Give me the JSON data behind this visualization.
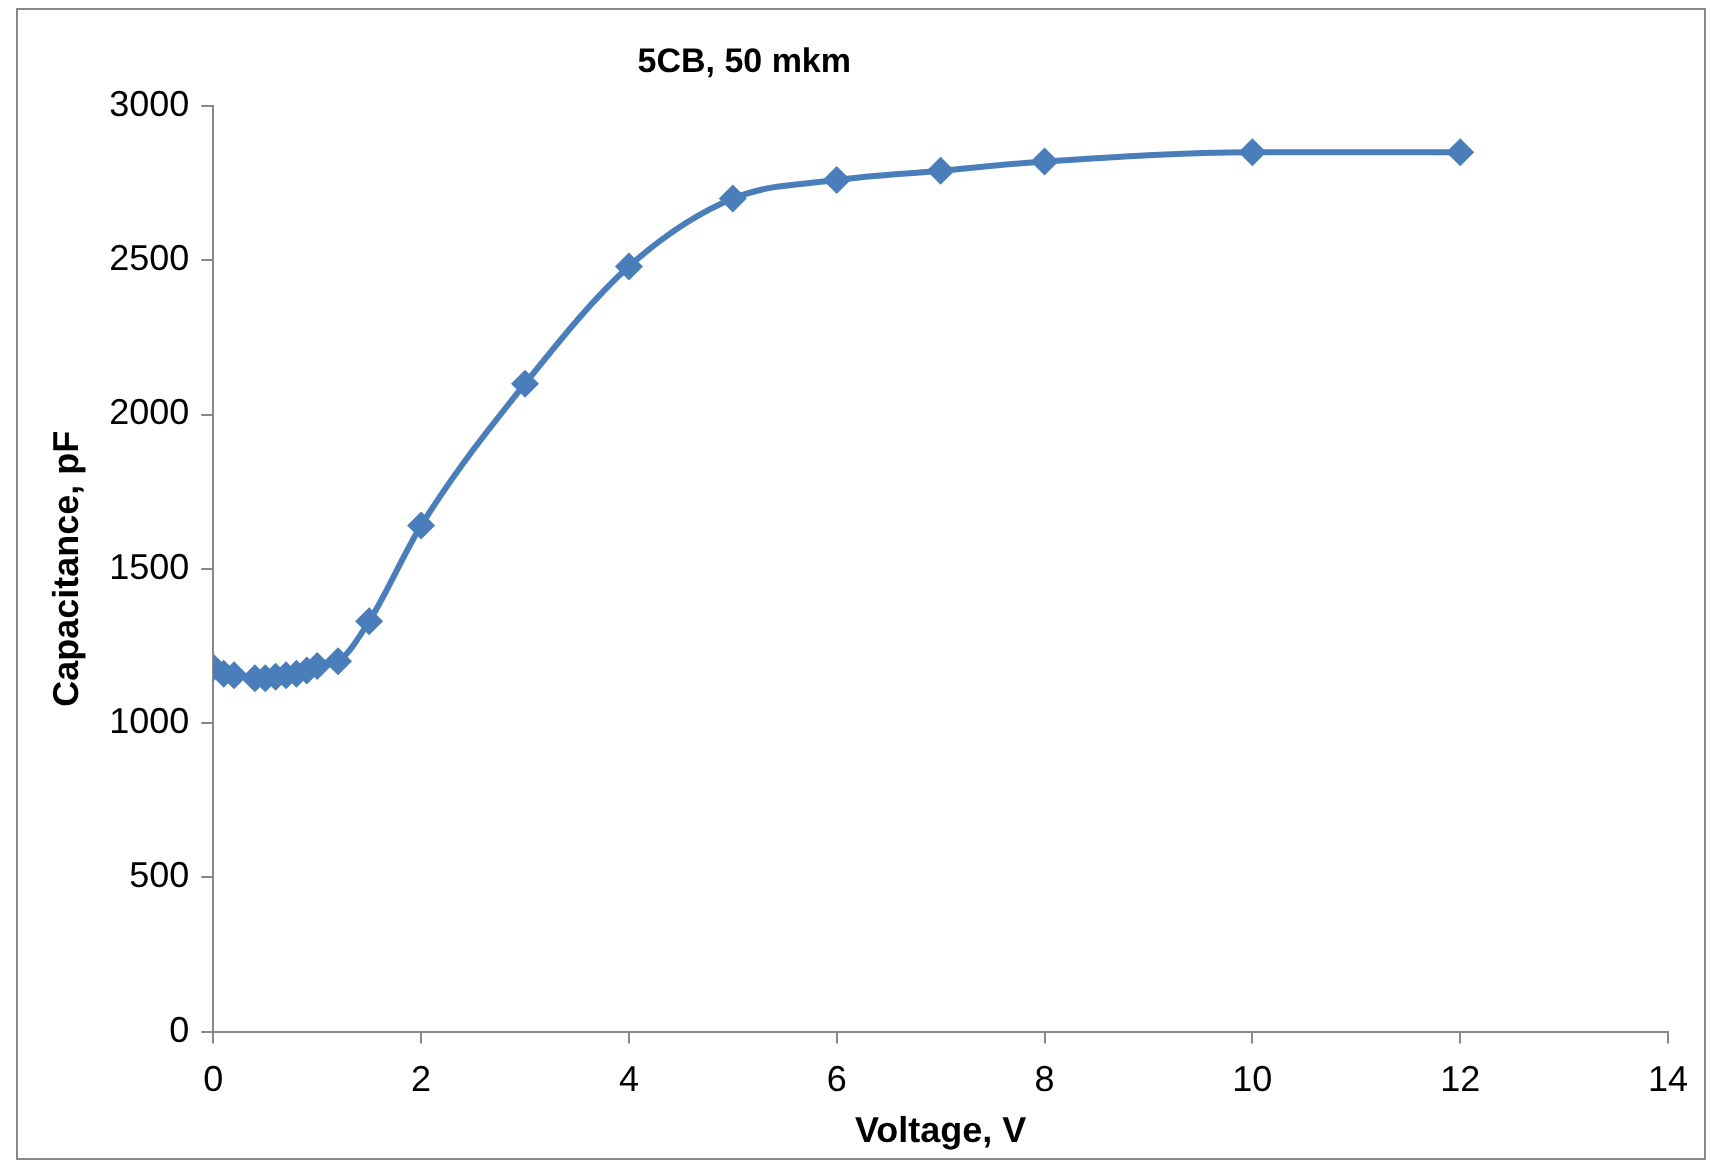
{
  "chart_data": {
    "type": "line",
    "title": "5CB, 50 mkm",
    "xlabel": "Voltage, V",
    "ylabel": "Capacitance, pF",
    "x": [
      0,
      0.1,
      0.2,
      0.4,
      0.5,
      0.6,
      0.7,
      0.8,
      0.9,
      1.0,
      1.2,
      1.5,
      2,
      3,
      4,
      5,
      6,
      7,
      8,
      10,
      12
    ],
    "series": [
      {
        "color": "#4a7ebb",
        "values": [
          1180,
          1160,
          1155,
          1145,
          1145,
          1150,
          1155,
          1160,
          1170,
          1185,
          1200,
          1330,
          1640,
          2100,
          2480,
          2700,
          2760,
          2790,
          2820,
          2850,
          2850
        ]
      }
    ],
    "xlim": [
      0,
      14
    ],
    "xticks": [
      0,
      2,
      4,
      6,
      8,
      10,
      12,
      14
    ],
    "ylim": [
      0,
      3000
    ],
    "yticks": [
      0,
      500,
      1000,
      1500,
      2000,
      2500,
      3000
    ],
    "grid": false,
    "legend": false,
    "marker": "diamond",
    "line_style": "solid"
  }
}
